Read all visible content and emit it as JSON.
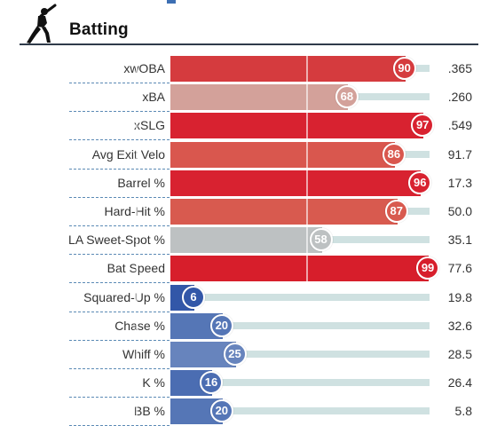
{
  "header": {
    "title": "Batting",
    "icon": "batter-icon",
    "accent_color": "#3d6fb3"
  },
  "metrics": [
    {
      "label": "xwOBA",
      "percentile": 90,
      "value": ".365",
      "color": "#d53b3e"
    },
    {
      "label": "xBA",
      "percentile": 68,
      "value": ".260",
      "color": "#d3a19a"
    },
    {
      "label": "xSLG",
      "percentile": 97,
      "value": ".549",
      "color": "#d82230"
    },
    {
      "label": "Avg Exit Velo",
      "percentile": 86,
      "value": "91.7",
      "color": "#d9574e"
    },
    {
      "label": "Barrel %",
      "percentile": 96,
      "value": "17.3",
      "color": "#d82230"
    },
    {
      "label": "Hard-Hit %",
      "percentile": 87,
      "value": "50.0",
      "color": "#d85a4f"
    },
    {
      "label": "LA Sweet-Spot %",
      "percentile": 58,
      "value": "35.1",
      "color": "#bdc1c2"
    },
    {
      "label": "Bat Speed",
      "percentile": 99,
      "value": "77.6",
      "color": "#d71e2b"
    },
    {
      "label": "Squared-Up %",
      "percentile": 6,
      "value": "19.8",
      "color": "#3257a8"
    },
    {
      "label": "Chase %",
      "percentile": 20,
      "value": "32.6",
      "color": "#5576b6"
    },
    {
      "label": "Whiff %",
      "percentile": 25,
      "value": "28.5",
      "color": "#6784bd"
    },
    {
      "label": "K %",
      "percentile": 16,
      "value": "26.4",
      "color": "#4b6db2"
    },
    {
      "label": "BB %",
      "percentile": 20,
      "value": "5.8",
      "color": "#5576b6"
    }
  ]
}
